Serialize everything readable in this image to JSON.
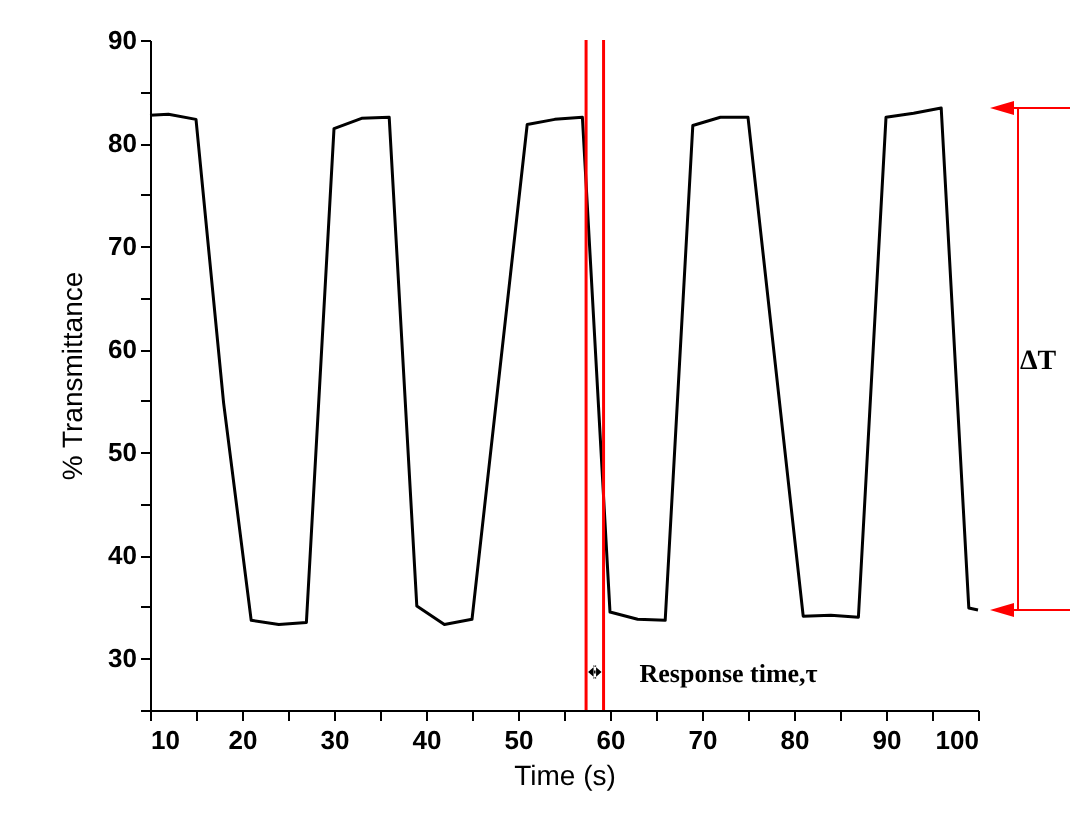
{
  "chart_data": {
    "type": "line",
    "xlabel": "Time (s)",
    "ylabel": "% Transmittance",
    "x": [
      10,
      12,
      15,
      18,
      21,
      24,
      27,
      30,
      33,
      36,
      39,
      42,
      45,
      51,
      54,
      57,
      60,
      63,
      66,
      69,
      72,
      75,
      81,
      84,
      87,
      90,
      93,
      96,
      99,
      100
    ],
    "series": [
      {
        "color": "#000000",
        "values": [
          82.7,
          82.8,
          82.3,
          54.8,
          33.7,
          33.3,
          33.5,
          81.4,
          82.4,
          82.5,
          35.1,
          33.3,
          33.8,
          81.8,
          82.3,
          82.5,
          34.5,
          33.8,
          33.7,
          81.7,
          82.5,
          82.5,
          34.1,
          34.2,
          34.0,
          82.5,
          82.9,
          83.4,
          34.9,
          34.7
        ]
      }
    ],
    "xlim": [
      10,
      100
    ],
    "xticks": [
      10,
      {
        "value": 15,
        "label": null
      },
      20,
      {
        "value": 25,
        "label": null
      },
      30,
      {
        "value": 35,
        "label": null
      },
      40,
      {
        "value": 45,
        "label": null
      },
      50,
      {
        "value": 55,
        "label": null
      },
      60,
      {
        "value": 65,
        "label": null
      },
      70,
      {
        "value": 75,
        "label": null
      },
      80,
      {
        "value": 85,
        "label": null
      },
      90,
      {
        "value": 95,
        "label": null
      },
      100
    ],
    "ylim": [
      25,
      90
    ],
    "yticks": [
      {
        "value": 25,
        "label": null
      },
      30,
      {
        "value": 35,
        "label": null
      },
      40,
      {
        "value": 45,
        "label": null
      },
      50,
      {
        "value": 55,
        "label": null
      },
      60,
      {
        "value": 65,
        "label": null
      },
      70,
      {
        "value": 75,
        "label": null
      },
      80,
      {
        "value": 85,
        "label": null
      },
      90
    ],
    "ref_lines": [
      {
        "axis": "x",
        "value": 57.4,
        "color": "#ff0000"
      },
      {
        "axis": "x",
        "value": 59.3,
        "color": "#ff0000"
      }
    ],
    "annotations": [
      "Response time,τ",
      "ΔT"
    ],
    "grid": false,
    "marker": "none",
    "line_style": "solid"
  }
}
